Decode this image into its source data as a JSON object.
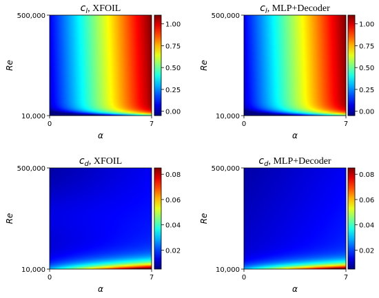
{
  "chart_data": [
    {
      "type": "heatmap",
      "title_symbol": "c",
      "title_subscript": "l",
      "title_text": ", XFOIL",
      "quantity": "cl",
      "xlabel": "α",
      "ylabel": "Re",
      "xlim": [
        0,
        7
      ],
      "ylim": [
        10000,
        500000
      ],
      "x_tick_labels": [
        "0",
        "7"
      ],
      "y_tick_labels": [
        "10,000",
        "500,000"
      ],
      "colorbar": {
        "range": [
          -0.05,
          1.1
        ],
        "ticks": [
          0.0,
          0.25,
          0.5,
          0.75,
          1.0
        ],
        "tick_labels": [
          "0.00",
          "0.25",
          "0.50",
          "0.75",
          "1.00"
        ]
      }
    },
    {
      "type": "heatmap",
      "title_symbol": "c",
      "title_subscript": "l",
      "title_text": ", MLP+Decoder",
      "quantity": "cl",
      "xlabel": "α",
      "ylabel": "Re",
      "xlim": [
        0,
        7
      ],
      "ylim": [
        10000,
        500000
      ],
      "x_tick_labels": [
        "0",
        "7"
      ],
      "y_tick_labels": [
        "10,000",
        "500,000"
      ],
      "colorbar": {
        "range": [
          -0.05,
          1.1
        ],
        "ticks": [
          0.0,
          0.25,
          0.5,
          0.75,
          1.0
        ],
        "tick_labels": [
          "0.00",
          "0.25",
          "0.50",
          "0.75",
          "1.00"
        ]
      }
    },
    {
      "type": "heatmap",
      "title_symbol": "c",
      "title_subscript": "d",
      "title_text": ", XFOIL",
      "quantity": "cd",
      "xlabel": "α",
      "ylabel": "Re",
      "xlim": [
        0,
        7
      ],
      "ylim": [
        10000,
        500000
      ],
      "x_tick_labels": [
        "0",
        "7"
      ],
      "y_tick_labels": [
        "10,000",
        "500,000"
      ],
      "colorbar": {
        "range": [
          0.005,
          0.085
        ],
        "ticks": [
          0.02,
          0.04,
          0.06,
          0.08
        ],
        "tick_labels": [
          "0.02",
          "0.04",
          "0.06",
          "0.08"
        ]
      }
    },
    {
      "type": "heatmap",
      "title_symbol": "c",
      "title_subscript": "d",
      "title_text": ", MLP+Decoder",
      "quantity": "cd",
      "xlabel": "α",
      "ylabel": "Re",
      "xlim": [
        0,
        7
      ],
      "ylim": [
        10000,
        500000
      ],
      "x_tick_labels": [
        "0",
        "7"
      ],
      "y_tick_labels": [
        "10,000",
        "500,000"
      ],
      "colorbar": {
        "range": [
          0.005,
          0.085
        ],
        "ticks": [
          0.02,
          0.04,
          0.06,
          0.08
        ],
        "tick_labels": [
          "0.02",
          "0.04",
          "0.06",
          "0.08"
        ]
      }
    }
  ],
  "colormap": "jet"
}
